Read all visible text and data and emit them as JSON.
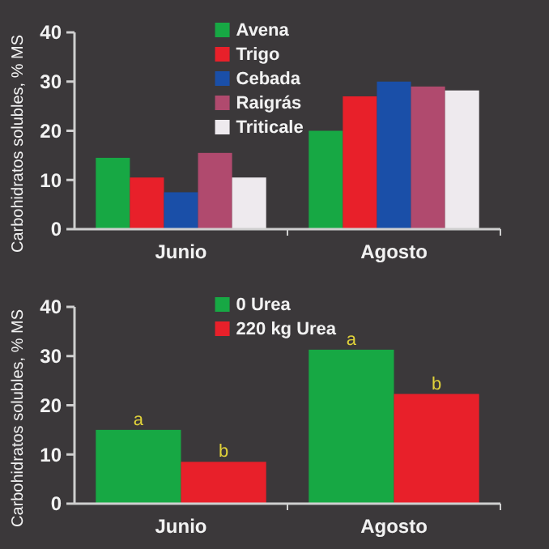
{
  "chart_data": [
    {
      "type": "bar",
      "ylabel": "Carbohidratos solubles, % MS",
      "categories": [
        "Junio",
        "Agosto"
      ],
      "series": [
        {
          "name": "Avena",
          "color": "#17a844",
          "values": [
            14.5,
            20
          ]
        },
        {
          "name": "Trigo",
          "color": "#e8202a",
          "values": [
            10.5,
            27
          ]
        },
        {
          "name": "Cebada",
          "color": "#1a4fa8",
          "values": [
            7.5,
            30
          ]
        },
        {
          "name": "Raigrás",
          "color": "#b04a6e",
          "values": [
            15.5,
            29
          ]
        },
        {
          "name": "Triticale",
          "color": "#eeeaee",
          "values": [
            10.5,
            28.2
          ]
        }
      ],
      "ylim": [
        0,
        40
      ],
      "yticks": [
        0,
        10,
        20,
        30,
        40
      ],
      "grid": false,
      "legend": "top"
    },
    {
      "type": "bar",
      "ylabel": "Carbohidratos solubles, % MS",
      "categories": [
        "Junio",
        "Agosto"
      ],
      "series": [
        {
          "name": "0 Urea",
          "color": "#17a844",
          "values": [
            15,
            31.3
          ]
        },
        {
          "name": "220 kg Urea",
          "color": "#e8202a",
          "values": [
            8.5,
            22.3
          ]
        }
      ],
      "ylim": [
        0,
        40
      ],
      "yticks": [
        0,
        10,
        20,
        30,
        40
      ],
      "grid": false,
      "legend": "top",
      "annotations": [
        {
          "text": "a",
          "x": "Junio",
          "y": 15
        },
        {
          "text": "b",
          "x": "Junio",
          "y": 8.5
        },
        {
          "text": "a",
          "x": "Agosto",
          "y": 31.3
        },
        {
          "text": "b",
          "x": "Agosto",
          "y": 22.3
        }
      ]
    }
  ]
}
